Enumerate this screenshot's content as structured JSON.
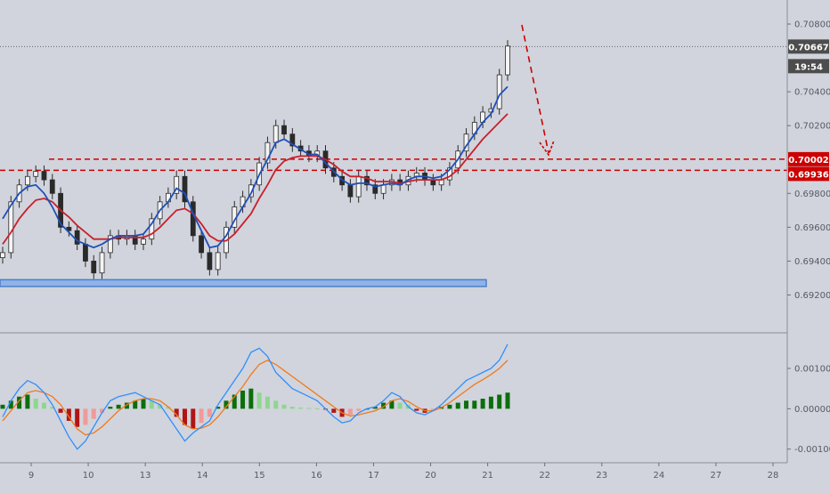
{
  "chart_data": [
    {
      "panel": "price",
      "type": "candlestick",
      "title": "",
      "xlabel": "",
      "ylabel": "",
      "ylim": [
        0.6905,
        0.709
      ],
      "y_ticks": [
        "0.70800",
        "0.70400",
        "0.70200",
        "0.69800",
        "0.69600",
        "0.69400",
        "0.69200"
      ],
      "grid": false,
      "last_price_label": "0.70667",
      "countdown_label": "19:54",
      "resistance_zone": {
        "upper": 0.70002,
        "lower": 0.69936,
        "upper_label": "0.70002",
        "lower_label": "0.69936",
        "color": "#cc0000"
      },
      "support_zone": {
        "lower": 0.6925,
        "upper": 0.6929,
        "color": "#4a7fc8"
      },
      "projected_move": "down",
      "close_series": [
        0.6945,
        0.6975,
        0.6985,
        0.699,
        0.6993,
        0.6988,
        0.698,
        0.696,
        0.6958,
        0.695,
        0.694,
        0.6933,
        0.6945,
        0.6955,
        0.6953,
        0.6955,
        0.695,
        0.6953,
        0.6965,
        0.6975,
        0.698,
        0.699,
        0.6975,
        0.6955,
        0.6945,
        0.6935,
        0.6945,
        0.696,
        0.6972,
        0.6978,
        0.6985,
        0.6998,
        0.701,
        0.702,
        0.7015,
        0.7008,
        0.7005,
        0.7002,
        0.7005,
        0.6995,
        0.699,
        0.6985,
        0.6978,
        0.699,
        0.6985,
        0.698,
        0.6985,
        0.6988,
        0.6985,
        0.699,
        0.6992,
        0.6988,
        0.6985,
        0.6988,
        0.6995,
        0.7005,
        0.7015,
        0.7022,
        0.7028,
        0.703,
        0.705,
        0.7067
      ],
      "ema_fast": [
        0.6965,
        0.6973,
        0.698,
        0.6984,
        0.6985,
        0.698,
        0.6972,
        0.6962,
        0.6957,
        0.6952,
        0.695,
        0.6948,
        0.695,
        0.6953,
        0.6955,
        0.6955,
        0.6955,
        0.6956,
        0.6962,
        0.697,
        0.6975,
        0.6983,
        0.698,
        0.6968,
        0.6958,
        0.6948,
        0.6949,
        0.6955,
        0.6964,
        0.6972,
        0.698,
        0.6991,
        0.7,
        0.701,
        0.7012,
        0.7009,
        0.7006,
        0.7003,
        0.7003,
        0.6998,
        0.6993,
        0.6988,
        0.6985,
        0.6986,
        0.6986,
        0.6984,
        0.6985,
        0.6986,
        0.6985,
        0.6988,
        0.699,
        0.699,
        0.6989,
        0.699,
        0.6994,
        0.7,
        0.7008,
        0.7015,
        0.7022,
        0.7027,
        0.7038,
        0.7043
      ],
      "ema_slow": [
        0.695,
        0.6957,
        0.6965,
        0.6971,
        0.6976,
        0.6977,
        0.6975,
        0.697,
        0.6966,
        0.6961,
        0.6957,
        0.6953,
        0.6953,
        0.6953,
        0.6954,
        0.6954,
        0.6954,
        0.6954,
        0.6956,
        0.696,
        0.6965,
        0.697,
        0.6971,
        0.6968,
        0.6962,
        0.6955,
        0.6952,
        0.6952,
        0.6956,
        0.6962,
        0.6968,
        0.6977,
        0.6985,
        0.6994,
        0.6999,
        0.7001,
        0.7002,
        0.7002,
        0.7002,
        0.7,
        0.6997,
        0.6993,
        0.699,
        0.699,
        0.6989,
        0.6987,
        0.6987,
        0.6987,
        0.6986,
        0.6987,
        0.6988,
        0.6988,
        0.6988,
        0.6988,
        0.699,
        0.6994,
        0.7,
        0.7006,
        0.7012,
        0.7017,
        0.7022,
        0.7027
      ]
    },
    {
      "panel": "macd",
      "type": "histogram+line",
      "title": "",
      "ylim": [
        -0.00125,
        0.00175
      ],
      "y_ticks": [
        "0.00100",
        "0.00000",
        "-0.00100"
      ],
      "histogram": [
        0.0001,
        0.0002,
        0.0003,
        0.00035,
        0.00025,
        0.00015,
        5e-05,
        -0.0001,
        -0.0003,
        -0.00045,
        -0.0004,
        -0.00025,
        -0.0001,
        5e-05,
        0.0001,
        0.00015,
        0.0002,
        0.00025,
        0.0002,
        0.0001,
        5e-05,
        -0.0002,
        -0.0004,
        -0.0005,
        -0.00035,
        -0.0002,
        5e-05,
        0.0002,
        0.00035,
        0.00045,
        0.0005,
        0.0004,
        0.0003,
        0.0002,
        0.0001,
        5e-05,
        3e-05,
        2e-05,
        1e-05,
        -2e-05,
        -0.0001,
        -0.0002,
        -0.00015,
        -5e-05,
        0.0,
        5e-05,
        0.00015,
        0.0002,
        0.00015,
        0.0001,
        -5e-05,
        -0.0001,
        -5e-05,
        5e-05,
        0.0001,
        0.00015,
        0.0002,
        0.0002,
        0.00025,
        0.0003,
        0.00035,
        0.0004
      ],
      "macd_line": [
        -0.0002,
        0.0002,
        0.0005,
        0.0007,
        0.0006,
        0.0004,
        0.0001,
        -0.0003,
        -0.0007,
        -0.001,
        -0.0008,
        -0.00045,
        -0.0001,
        0.0002,
        0.0003,
        0.00035,
        0.0004,
        0.0003,
        0.0002,
        0.0001,
        -0.0002,
        -0.0005,
        -0.0008,
        -0.0006,
        -0.00045,
        -0.0003,
        0.0001,
        0.0004,
        0.0007,
        0.001,
        0.0014,
        0.0015,
        0.0013,
        0.0009,
        0.0007,
        0.0005,
        0.0004,
        0.0003,
        0.0002,
        0.0,
        -0.0002,
        -0.00035,
        -0.0003,
        -0.0001,
        0.0,
        5e-05,
        0.0002,
        0.0004,
        0.0003,
        5e-05,
        -0.0001,
        -0.00015,
        -5e-05,
        0.0001,
        0.0003,
        0.0005,
        0.0007,
        0.0008,
        0.0009,
        0.001,
        0.0012,
        0.0016
      ],
      "signal_line": [
        -0.0003,
        -5e-05,
        0.0002,
        0.0004,
        0.00045,
        0.0004,
        0.0003,
        0.0001,
        -0.0002,
        -0.0005,
        -0.00065,
        -0.0006,
        -0.00045,
        -0.00025,
        -5e-05,
        0.0001,
        0.0002,
        0.00025,
        0.00025,
        0.0002,
        5e-05,
        -0.00015,
        -0.0004,
        -0.0005,
        -0.00048,
        -0.0004,
        -0.0002,
        5e-05,
        0.0003,
        0.00055,
        0.00085,
        0.0011,
        0.0012,
        0.0011,
        0.00095,
        0.0008,
        0.00065,
        0.0005,
        0.00035,
        0.0002,
        5e-05,
        -0.0001,
        -0.00018,
        -0.00015,
        -0.0001,
        -5e-05,
        5e-05,
        0.0002,
        0.00025,
        0.00018,
        5e-05,
        -5e-05,
        -5e-05,
        3e-05,
        0.00015,
        0.0003,
        0.00045,
        0.0006,
        0.00072,
        0.00085,
        0.001,
        0.0012
      ]
    }
  ],
  "x_axis": {
    "labels": [
      "9",
      "10",
      "13",
      "14",
      "15",
      "16",
      "17",
      "20",
      "21",
      "22",
      "23",
      "24",
      "27",
      "28"
    ]
  },
  "colors": {
    "background": "#d1d4dc",
    "candle": "#2a2a2a",
    "ema_fast": "#1f4fb8",
    "ema_slow": "#c8202c",
    "resistance": "#cc0000",
    "support": "#4a7fc8",
    "macd_line": "#2f8fff",
    "signal_line": "#f07a1c",
    "hist_pos_strong": "#0c6e0c",
    "hist_pos_weak": "#8fd68f",
    "hist_neg_strong": "#b01515",
    "hist_neg_weak": "#f09a9a",
    "label_dark": "#4d4d4d",
    "label_red": "#cc0000"
  }
}
